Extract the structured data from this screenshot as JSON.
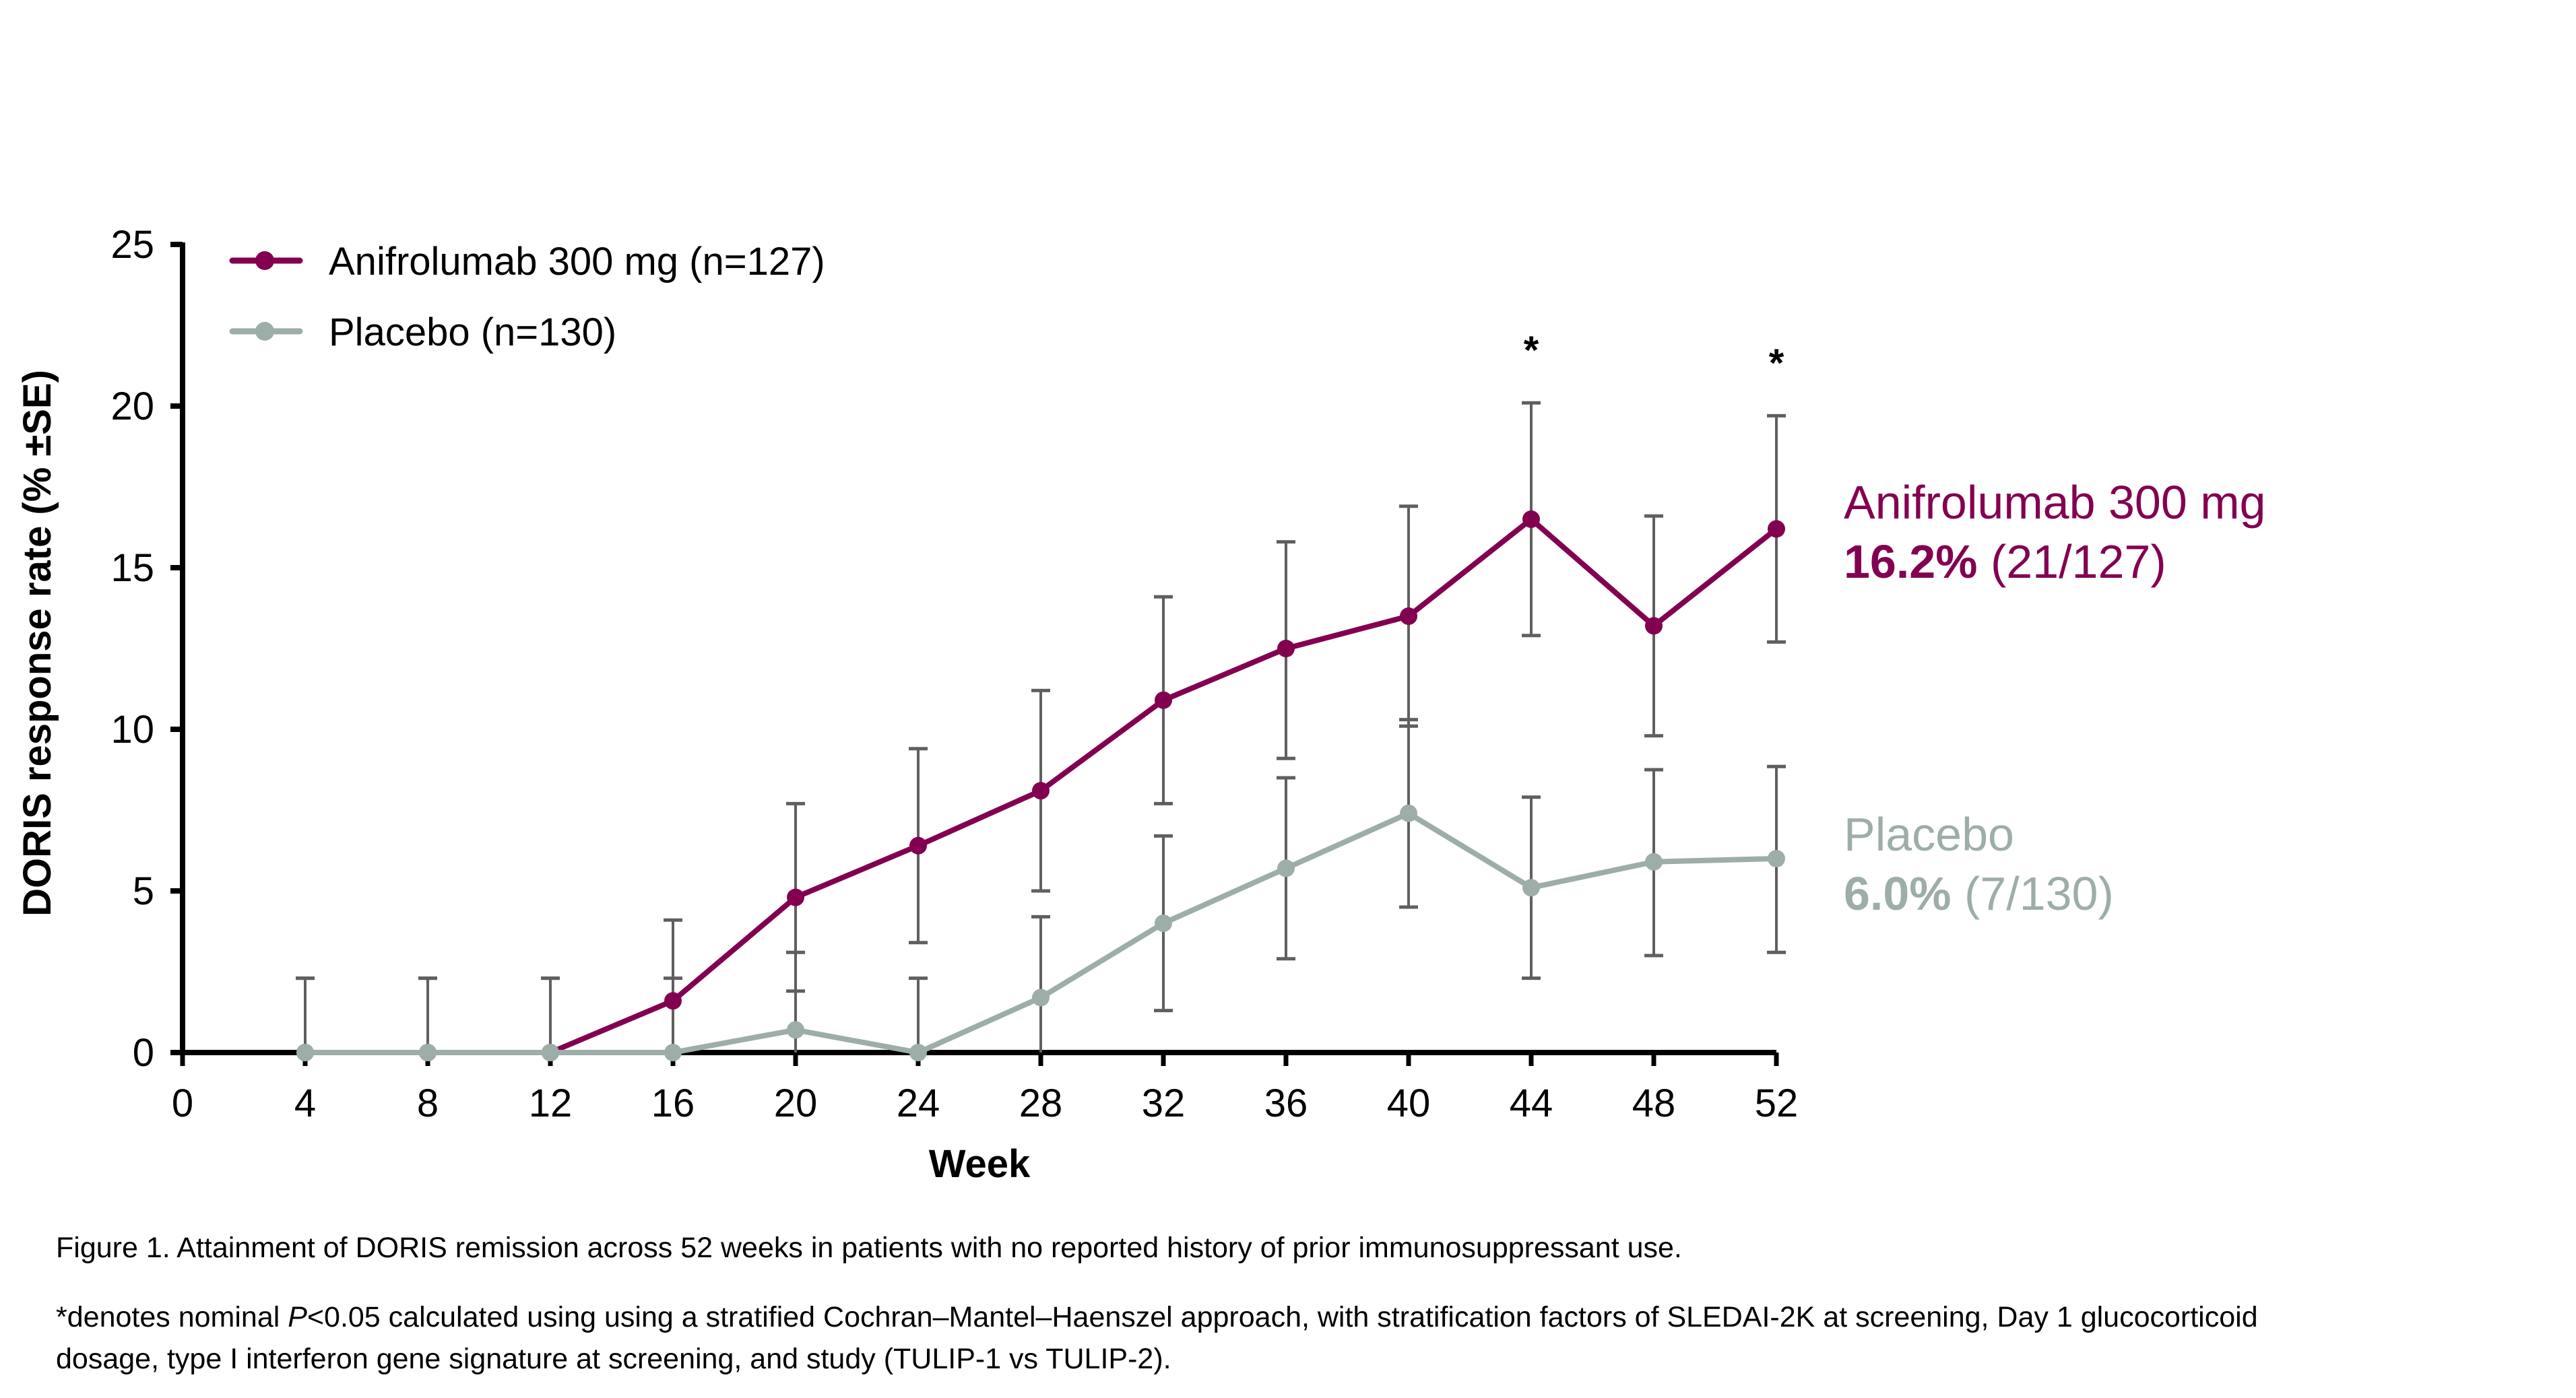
{
  "chart_data": {
    "type": "line",
    "title": "",
    "xlabel": "Week",
    "ylabel": "DORIS response rate (% ±SE)",
    "xlim": [
      0,
      52
    ],
    "ylim": [
      0,
      25
    ],
    "x_ticks": [
      0,
      4,
      8,
      12,
      16,
      20,
      24,
      28,
      32,
      36,
      40,
      44,
      48,
      52
    ],
    "y_ticks": [
      0,
      5,
      10,
      15,
      20,
      25
    ],
    "grid": false,
    "legend_position": "top-left",
    "x": [
      4,
      8,
      12,
      16,
      20,
      24,
      28,
      32,
      36,
      40,
      44,
      48,
      52
    ],
    "series": [
      {
        "name": "Anifrolumab 300 mg (n=127)",
        "color": "#830051",
        "values": [
          0,
          0,
          0,
          1.6,
          4.8,
          6.4,
          8.1,
          10.9,
          12.5,
          13.5,
          16.5,
          13.2,
          16.2
        ],
        "se_upper": [
          2.3,
          2.3,
          2.3,
          4.1,
          7.7,
          9.4,
          11.2,
          14.1,
          15.8,
          16.9,
          20.1,
          16.6,
          19.7
        ],
        "se_lower": [
          0,
          0,
          0,
          0,
          1.9,
          3.4,
          5.0,
          7.7,
          9.1,
          10.1,
          12.9,
          9.8,
          12.7
        ],
        "end_label": {
          "name": "Anifrolumab 300 mg",
          "value": "16.2%",
          "count": "(21/127)"
        }
      },
      {
        "name": "Placebo (n=130)",
        "color": "#9DADA8",
        "values": [
          0,
          0,
          0,
          0,
          0.7,
          0,
          1.7,
          4.0,
          5.7,
          7.4,
          5.1,
          5.9,
          6.0
        ],
        "se_upper": [
          2.3,
          2.3,
          2.3,
          2.3,
          3.1,
          2.3,
          4.2,
          6.7,
          8.5,
          10.3,
          7.9,
          8.75,
          8.85
        ],
        "se_lower": [
          0,
          0,
          0,
          0,
          0,
          0,
          0,
          1.3,
          2.9,
          4.5,
          2.3,
          3.0,
          3.1
        ],
        "end_label": {
          "name": "Placebo",
          "value": "6.0%",
          "count": "(7/130)"
        }
      }
    ],
    "annotations": [
      {
        "text": "*",
        "x": 44,
        "y": 21.9
      },
      {
        "text": "*",
        "x": 52,
        "y": 21.5
      }
    ]
  },
  "caption": {
    "figure": "Figure 1. Attainment of DORIS remission across 52 weeks in patients with no reported history of prior immunosuppressant use.",
    "footnote_pre": "*denotes nominal ",
    "footnote_italic": "P",
    "footnote_post": "<0.05 calculated using using a stratified Cochran–Mantel–Haenszel approach, with stratification factors of SLEDAI-2K at screening, Day 1 glucocorticoid dosage, type I interferon gene signature at screening, and study (TULIP-1 vs TULIP-2)."
  }
}
